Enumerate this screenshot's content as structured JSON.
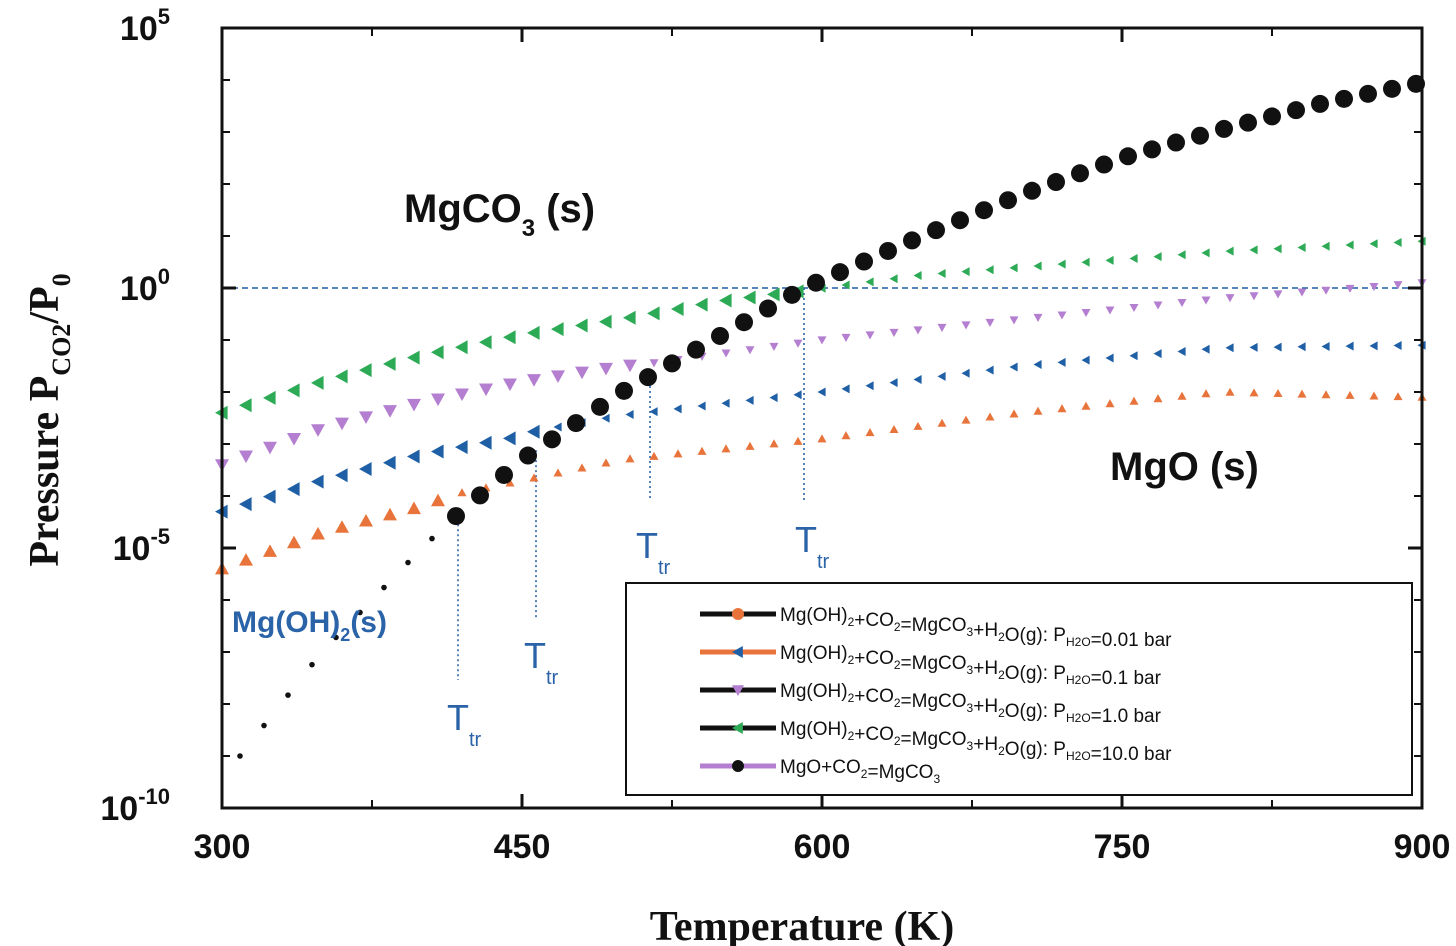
{
  "chart_data": {
    "type": "scatter",
    "xlabel": "Temperature (K)",
    "ylabel": "Pressure P_CO2/P_0",
    "xlim": [
      300,
      900
    ],
    "ylim": [
      -10,
      5
    ],
    "y_scale": "log",
    "x_ticks": [
      "300",
      "450",
      "600",
      "750",
      "900"
    ],
    "y_ticks": [
      {
        "base": "10",
        "exp": "5",
        "value": 5
      },
      {
        "base": "10",
        "exp": "0",
        "value": 0
      },
      {
        "base": "10",
        "exp": "-5",
        "value": -5
      },
      {
        "base": "10",
        "exp": "-10",
        "value": -10
      }
    ],
    "reference_line": {
      "y": 0,
      "color": "#1f5fa5",
      "style": "dashed"
    },
    "series": [
      {
        "name": "Mg(OH)2+CO2=MgCO3+H2O(g): PH2O=0.01 bar",
        "color": "#e8743b",
        "marker": "triangle-up",
        "x": [
          300,
          350,
          400,
          418,
          450,
          500,
          600,
          700,
          800,
          900
        ],
        "y": [
          -5.4,
          -4.7,
          -4.2,
          -3.95,
          -3.7,
          -3.3,
          -2.9,
          -2.4,
          -2.0,
          -2.1
        ]
      },
      {
        "name": "Mg(OH)2+CO2=MgCO3+H2O(g): PH2O=0.1 bar",
        "color": "#1f5fa5",
        "marker": "triangle-left",
        "x": [
          300,
          350,
          400,
          450,
          457,
          500,
          600,
          700,
          800,
          900
        ],
        "y": [
          -4.3,
          -3.7,
          -3.2,
          -2.85,
          -2.75,
          -2.45,
          -2.0,
          -1.5,
          -1.15,
          -1.1
        ]
      },
      {
        "name": "Mg(OH)2+CO2=MgCO3+H2O(g): PH2O=1.0 bar",
        "color": "#b47fd0",
        "marker": "triangle-down",
        "x": [
          300,
          350,
          400,
          450,
          500,
          514,
          600,
          700,
          800,
          900
        ],
        "y": [
          -3.4,
          -2.7,
          -2.2,
          -1.8,
          -1.5,
          -1.45,
          -1.0,
          -0.6,
          -0.2,
          0.1
        ]
      },
      {
        "name": "Mg(OH)2+CO2=MgCO3+H2O(g): PH2O=10.0 bar",
        "color": "#2daa55",
        "marker": "triangle-left",
        "x": [
          300,
          350,
          400,
          450,
          500,
          550,
          591,
          650,
          700,
          800,
          900
        ],
        "y": [
          -2.4,
          -1.8,
          -1.3,
          -0.9,
          -0.6,
          -0.25,
          -0.05,
          0.25,
          0.4,
          0.7,
          0.9
        ]
      },
      {
        "name": "MgO+CO2=MgCO3",
        "color": "#111111",
        "marker": "circle",
        "x": [
          309,
          350,
          400,
          418,
          450,
          500,
          550,
          591,
          650,
          700,
          750,
          800,
          850,
          900
        ],
        "y": [
          -9.0,
          -7.0,
          -5.0,
          -4.35,
          -3.3,
          -2.0,
          -0.9,
          0.0,
          1.0,
          1.8,
          2.5,
          3.05,
          3.55,
          3.95
        ]
      }
    ],
    "transition_temperatures": [
      418,
      457,
      514,
      591
    ],
    "transition_label": {
      "main": "T",
      "sub": "tr"
    },
    "annotations": {
      "mgco3_main": "MgCO",
      "mgco3_sub": "3",
      "mgco3_suffix": " (s)",
      "mgo": "MgO (s)",
      "mgoh_main": "Mg(OH)",
      "mgoh_sub": "2",
      "mgoh_suffix": "(s)"
    },
    "legend": [
      {
        "line_color": "#111111",
        "marker_color": "#e8743b",
        "marker": "circle",
        "t1": "Mg(OH)",
        "s1": "2",
        "t2": "+CO",
        "s2": "2",
        "t3": "=MgCO",
        "s3": "3",
        "t4": "+H",
        "s4": "2",
        "t5": "O(g): P",
        "s5": "H2O",
        "t6": "=0.01 bar"
      },
      {
        "line_color": "#e8743b",
        "marker_color": "#1f5fa5",
        "marker": "triangle-left",
        "t1": "Mg(OH)",
        "s1": "2",
        "t2": "+CO",
        "s2": "2",
        "t3": "=MgCO",
        "s3": "3",
        "t4": "+H",
        "s4": "2",
        "t5": "O(g): P",
        "s5": "H2O",
        "t6": "=0.1 bar"
      },
      {
        "line_color": "#111111",
        "marker_color": "#b47fd0",
        "marker": "triangle-down",
        "t1": "Mg(OH)",
        "s1": "2",
        "t2": "+CO",
        "s2": "2",
        "t3": "=MgCO",
        "s3": "3",
        "t4": "+H",
        "s4": "2",
        "t5": "O(g): P",
        "s5": "H2O",
        "t6": "=1.0 bar"
      },
      {
        "line_color": "#111111",
        "marker_color": "#2daa55",
        "marker": "triangle-left",
        "t1": "Mg(OH)",
        "s1": "2",
        "t2": "+CO",
        "s2": "2",
        "t3": "=MgCO",
        "s3": "3",
        "t4": "+H",
        "s4": "2",
        "t5": "O(g): P",
        "s5": "H2O",
        "t6": "=10.0 bar"
      },
      {
        "line_color": "#b47fd0",
        "marker_color": "#111111",
        "marker": "circle",
        "t1": "MgO+CO",
        "s1": "2",
        "t2": "=MgCO",
        "s2": "3",
        "t3": "",
        "s3": "",
        "t4": "",
        "s4": "",
        "t5": "",
        "s5": "",
        "t6": ""
      }
    ]
  }
}
